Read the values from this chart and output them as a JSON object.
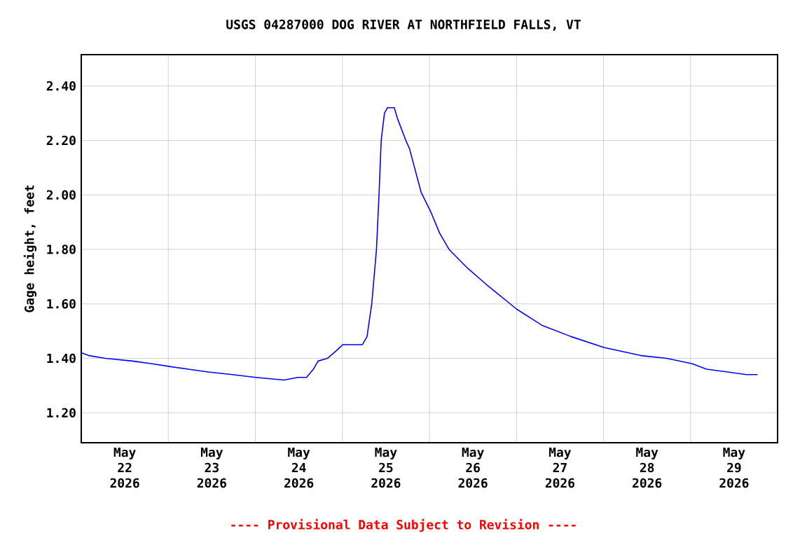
{
  "chart_data": {
    "type": "line",
    "title": "USGS 04287000 DOG RIVER AT NORTHFIELD FALLS, VT",
    "ylabel": "Gage height, feet",
    "annotations": [
      "---- Provisional Data Subject to Revision ----"
    ],
    "xlim": [
      "2026-05-22T00:00",
      "2026-05-30T00:00"
    ],
    "xticks": [
      {
        "value": "2026-05-22T12:00",
        "label": "May 22 2026"
      },
      {
        "value": "2026-05-23T12:00",
        "label": "May 23 2026"
      },
      {
        "value": "2026-05-24T12:00",
        "label": "May 24 2026"
      },
      {
        "value": "2026-05-25T12:00",
        "label": "May 25 2026"
      },
      {
        "value": "2026-05-26T12:00",
        "label": "May 26 2026"
      },
      {
        "value": "2026-05-27T12:00",
        "label": "May 27 2026"
      },
      {
        "value": "2026-05-28T12:00",
        "label": "May 28 2026"
      },
      {
        "value": "2026-05-29T12:00",
        "label": "May 29 2026"
      },
      {
        "value": "2026-05-23T00:00",
        "label": null
      },
      {
        "value": "2026-05-24T00:00",
        "label": null
      },
      {
        "value": "2026-05-25T00:00",
        "label": null
      },
      {
        "value": "2026-05-26T00:00",
        "label": null
      },
      {
        "value": "2026-05-27T00:00",
        "label": null
      },
      {
        "value": "2026-05-28T00:00",
        "label": null
      },
      {
        "value": "2026-05-29T00:00",
        "label": null
      }
    ],
    "ylim": [
      1.09,
      2.515
    ],
    "yticks": [
      {
        "value": 1.2,
        "label": "1.20"
      },
      {
        "value": 1.4,
        "label": "1.40"
      },
      {
        "value": 1.6,
        "label": "1.60"
      },
      {
        "value": 1.8,
        "label": "1.80"
      },
      {
        "value": 2.0,
        "label": "2.00"
      },
      {
        "value": 2.2,
        "label": "2.20"
      },
      {
        "value": 2.4,
        "label": "2.40"
      }
    ],
    "grid": true,
    "marker": "none",
    "line_style": "solid",
    "series": [
      {
        "color": "#0000ff",
        "x": [
          "2026-05-22T00:06",
          "2026-05-22T02:06",
          "2026-05-22T06:36",
          "2026-05-22T14:06",
          "2026-05-22T19:30",
          "2026-05-23T00:18",
          "2026-05-23T05:30",
          "2026-05-23T11:00",
          "2026-05-23T17:42",
          "2026-05-24T00:06",
          "2026-05-24T07:54",
          "2026-05-24T11:42",
          "2026-05-24T14:06",
          "2026-05-24T16:00",
          "2026-05-24T17:18",
          "2026-05-24T19:54",
          "2026-05-24T22:30",
          "2026-05-25T00:06",
          "2026-05-25T05:30",
          "2026-05-25T06:48",
          "2026-05-25T08:06",
          "2026-05-25T09:24",
          "2026-05-25T10:06",
          "2026-05-25T10:42",
          "2026-05-25T11:36",
          "2026-05-25T12:24",
          "2026-05-25T14:18",
          "2026-05-25T15:12",
          "2026-05-25T17:30",
          "2026-05-25T18:30",
          "2026-05-25T21:42",
          "2026-05-26T00:18",
          "2026-05-26T02:48",
          "2026-05-26T05:24",
          "2026-05-26T10:36",
          "2026-05-26T15:48",
          "2026-05-27T00:06",
          "2026-05-27T07:12",
          "2026-05-27T15:00",
          "2026-05-28T00:06",
          "2026-05-28T10:18",
          "2026-05-28T17:24",
          "2026-05-29T00:30",
          "2026-05-29T04:24",
          "2026-05-29T10:12",
          "2026-05-29T15:24",
          "2026-05-29T18:30"
        ],
        "values": [
          1.42,
          1.41,
          1.4,
          1.39,
          1.38,
          1.37,
          1.36,
          1.35,
          1.34,
          1.33,
          1.32,
          1.33,
          1.33,
          1.36,
          1.39,
          1.4,
          1.43,
          1.45,
          1.45,
          1.48,
          1.6,
          1.8,
          2.0,
          2.2,
          2.3,
          2.32,
          2.32,
          2.28,
          2.2,
          2.17,
          2.01,
          1.94,
          1.86,
          1.8,
          1.73,
          1.67,
          1.58,
          1.52,
          1.48,
          1.44,
          1.41,
          1.4,
          1.38,
          1.36,
          1.35,
          1.34,
          1.34
        ]
      }
    ]
  }
}
